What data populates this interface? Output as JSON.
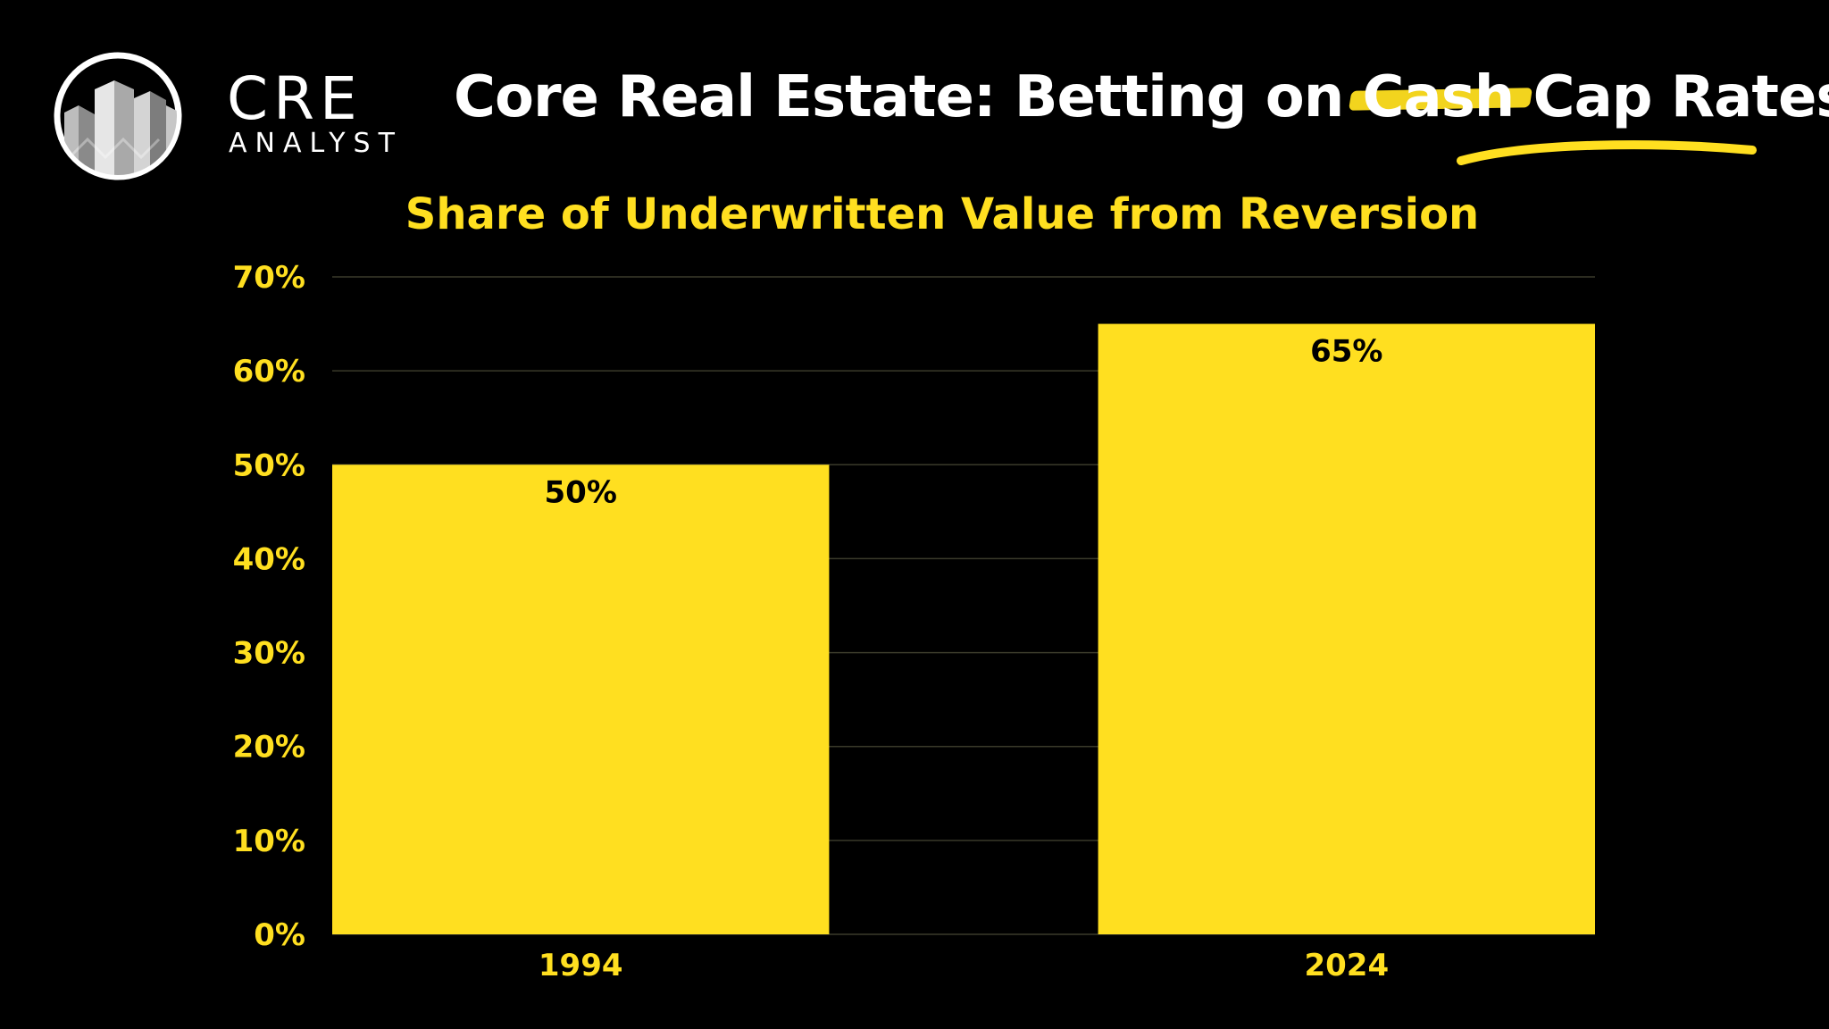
{
  "brand": {
    "name": "CRE",
    "subname": "ANALYST"
  },
  "headline": {
    "prefix": "Core Real Estate: Betting on ",
    "struck_word": "Cash",
    "suffix": " Cap Rates?"
  },
  "colors": {
    "background": "#000000",
    "accent": "#ffdf20",
    "text": "#ffffff"
  },
  "chart_data": {
    "type": "bar",
    "title": "Share of Underwritten Value from Reversion",
    "categories": [
      "1994",
      "2024"
    ],
    "values": [
      50,
      65
    ],
    "data_labels": [
      "50%",
      "65%"
    ],
    "ylim": [
      0,
      70
    ],
    "yticks": [
      0,
      10,
      20,
      30,
      40,
      50,
      60,
      70
    ],
    "ytick_labels": [
      "0%",
      "10%",
      "20%",
      "30%",
      "40%",
      "50%",
      "60%",
      "70%"
    ],
    "xlabel": "",
    "ylabel": "",
    "grid": true,
    "bar_color": "#ffdf20"
  }
}
